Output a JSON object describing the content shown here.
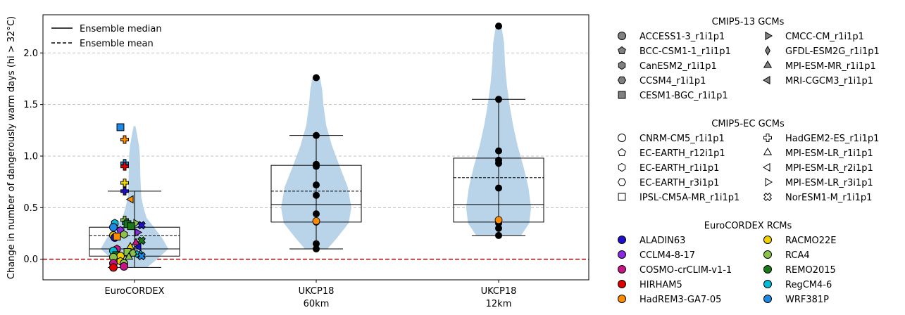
{
  "chart_data": {
    "type": "violin+box+scatter",
    "ylabel": "Change in number of dangerously warm days (hi > 32°C)",
    "ylim": [
      -0.2,
      2.37
    ],
    "yticks": [
      "0.0",
      "0.5",
      "1.0",
      "1.5",
      "2.0"
    ],
    "grid": "horizontal dashed",
    "zero_line_color": "#aa0000",
    "violin_color": "#b9d4e9",
    "categories": [
      {
        "label": "EuroCORDEX",
        "sublabel": ""
      },
      {
        "label": "UKCP18",
        "sublabel": "60km"
      },
      {
        "label": "UKCP18",
        "sublabel": "12km"
      }
    ],
    "groups": [
      {
        "name": "EuroCORDEX",
        "box": {
          "q1": 0.03,
          "median": 0.1,
          "mean": 0.23,
          "q3": 0.31
        },
        "range": [
          -0.08,
          0.66
        ],
        "violin": [
          [
            -0.08,
            0.28
          ],
          [
            0.0,
            0.5
          ],
          [
            0.1,
            0.75
          ],
          [
            0.2,
            0.62
          ],
          [
            0.3,
            0.45
          ],
          [
            0.4,
            0.27
          ],
          [
            0.5,
            0.2
          ],
          [
            0.6,
            0.15
          ],
          [
            0.8,
            0.13
          ],
          [
            1.0,
            0.12
          ],
          [
            1.1,
            0.1
          ],
          [
            1.2,
            0.06
          ],
          [
            1.29,
            0.02
          ]
        ]
      },
      {
        "name": "UKCP18 60km",
        "box": {
          "q1": 0.36,
          "median": 0.53,
          "mean": 0.66,
          "q3": 0.91
        },
        "range": [
          0.1,
          1.2
        ],
        "points": [
          1.76,
          1.2,
          0.92,
          0.9,
          0.72,
          0.62,
          0.44,
          0.36,
          0.15,
          0.1
        ],
        "highlight": 0.37,
        "violin": [
          [
            0.1,
            0.25
          ],
          [
            0.2,
            0.45
          ],
          [
            0.35,
            0.72
          ],
          [
            0.5,
            0.78
          ],
          [
            0.7,
            0.7
          ],
          [
            0.9,
            0.52
          ],
          [
            1.1,
            0.35
          ],
          [
            1.3,
            0.22
          ],
          [
            1.5,
            0.16
          ],
          [
            1.65,
            0.13
          ],
          [
            1.77,
            0.08
          ]
        ]
      },
      {
        "name": "UKCP18 12km",
        "box": {
          "q1": 0.36,
          "median": 0.53,
          "mean": 0.79,
          "q3": 0.98
        },
        "range": [
          0.23,
          1.55
        ],
        "points": [
          2.26,
          1.55,
          1.05,
          0.96,
          0.93,
          0.69,
          0.35,
          0.3,
          0.23
        ],
        "highlight": 0.38,
        "violin": [
          [
            0.23,
            0.5
          ],
          [
            0.35,
            0.68
          ],
          [
            0.5,
            0.72
          ],
          [
            0.7,
            0.66
          ],
          [
            0.9,
            0.55
          ],
          [
            1.1,
            0.42
          ],
          [
            1.3,
            0.32
          ],
          [
            1.5,
            0.24
          ],
          [
            1.7,
            0.18
          ],
          [
            1.9,
            0.14
          ],
          [
            2.1,
            0.12
          ],
          [
            2.27,
            0.06
          ]
        ]
      }
    ],
    "eurocordex_points": [
      {
        "dx": -0.2,
        "y": 1.28,
        "m": "s",
        "c": "#1e88e5"
      },
      {
        "dx": -0.14,
        "y": 1.16,
        "m": "P",
        "c": "#ff8c00"
      },
      {
        "dx": -0.14,
        "y": 0.93,
        "m": "P",
        "c": "#1e88e5"
      },
      {
        "dx": -0.14,
        "y": 0.9,
        "m": "P",
        "c": "#e00000"
      },
      {
        "dx": -0.14,
        "y": 0.74,
        "m": "P",
        "c": "#f0d000"
      },
      {
        "dx": -0.14,
        "y": 0.66,
        "m": "P",
        "c": "#1e10c8"
      },
      {
        "dx": -0.05,
        "y": 0.58,
        "m": "<",
        "c": "#ff8c00"
      },
      {
        "dx": -0.14,
        "y": 0.38,
        "m": "P",
        "c": "#8bc34a"
      },
      {
        "dx": -0.28,
        "y": 0.35,
        "m": "h",
        "c": "#00bcd4"
      },
      {
        "dx": -0.12,
        "y": 0.35,
        "m": "P",
        "c": "#20b2aa"
      },
      {
        "dx": -0.1,
        "y": 0.34,
        "m": "s",
        "c": "#1a7a1a"
      },
      {
        "dx": 0.02,
        "y": 0.35,
        "m": ">",
        "c": "#8bc34a"
      },
      {
        "dx": 0.1,
        "y": 0.33,
        "m": "X",
        "c": "#1e10c8"
      },
      {
        "dx": -0.3,
        "y": 0.31,
        "m": "o",
        "c": "#1e88e5"
      },
      {
        "dx": -0.05,
        "y": 0.32,
        "m": "s",
        "c": "#1a7a1a"
      },
      {
        "dx": -0.2,
        "y": 0.28,
        "m": "p",
        "c": "#8a2be2"
      },
      {
        "dx": 0.04,
        "y": 0.26,
        "m": ">",
        "c": "#8a2be2"
      },
      {
        "dx": -0.15,
        "y": 0.24,
        "m": "h",
        "c": "#8bc34a"
      },
      {
        "dx": -0.3,
        "y": 0.23,
        "m": "o",
        "c": "#f0d000"
      },
      {
        "dx": -0.28,
        "y": 0.21,
        "m": "o",
        "c": "#1e10c8"
      },
      {
        "dx": -0.25,
        "y": 0.22,
        "m": "s",
        "c": "#ff8c00"
      },
      {
        "dx": 0.1,
        "y": 0.18,
        "m": "X",
        "c": "#1a7a1a"
      },
      {
        "dx": 0.02,
        "y": 0.16,
        "m": "^",
        "c": "#c71585"
      },
      {
        "dx": -0.06,
        "y": 0.12,
        "m": "^",
        "c": "#f0d000"
      },
      {
        "dx": 0.06,
        "y": 0.12,
        "m": "<",
        "c": "#1e10c8"
      },
      {
        "dx": -0.25,
        "y": 0.1,
        "m": "h",
        "c": "#c71585"
      },
      {
        "dx": -0.3,
        "y": 0.08,
        "m": "o",
        "c": "#00bcd4"
      },
      {
        "dx": -0.1,
        "y": 0.07,
        "m": "s",
        "c": "#8bc34a"
      },
      {
        "dx": -0.02,
        "y": 0.06,
        "m": "p",
        "c": "#8bc34a"
      },
      {
        "dx": 0.06,
        "y": 0.05,
        "m": "X",
        "c": "#00bcd4"
      },
      {
        "dx": 0.1,
        "y": 0.03,
        "m": "X",
        "c": "#1e88e5"
      },
      {
        "dx": -0.26,
        "y": 0.04,
        "m": "s",
        "c": "#1a7a1a"
      },
      {
        "dx": -0.2,
        "y": 0.03,
        "m": "o",
        "c": "#f0d000"
      },
      {
        "dx": -0.3,
        "y": 0.02,
        "m": "o",
        "c": "#8bc34a"
      },
      {
        "dx": -0.08,
        "y": 0.02,
        "m": "^",
        "c": "#8bc34a"
      },
      {
        "dx": -0.2,
        "y": -0.02,
        "m": "h",
        "c": "#f0d000"
      },
      {
        "dx": -0.15,
        "y": -0.04,
        "m": "o",
        "c": "#8bc34a"
      },
      {
        "dx": -0.3,
        "y": -0.04,
        "m": "o",
        "c": "#c71585"
      },
      {
        "dx": -0.15,
        "y": -0.07,
        "m": "o",
        "c": "#c71585"
      },
      {
        "dx": -0.3,
        "y": -0.08,
        "m": "o",
        "c": "#e00000"
      }
    ]
  },
  "legend_plot": [
    {
      "label": "Ensemble median",
      "style": "solid"
    },
    {
      "label": "Ensemble mean",
      "style": "dashed"
    }
  ],
  "legend_sections": [
    {
      "title": "CMIP5-13 GCMs",
      "col1": [
        {
          "label": "ACCESS1-3_r1i1p1",
          "m": "o",
          "c": "#808080"
        },
        {
          "label": "BCC-CSM1-1_r1i1p1",
          "m": "p",
          "c": "#808080"
        },
        {
          "label": "CanESM2_r1i1p1",
          "m": "h",
          "c": "#808080"
        },
        {
          "label": "CCSM4_r1i1p1",
          "m": "H",
          "c": "#808080"
        },
        {
          "label": "CESM1-BGC_r1i1p1",
          "m": "s",
          "c": "#808080"
        }
      ],
      "col2": [
        {
          "label": "CMCC-CM_r1i1p1",
          "m": ">",
          "c": "#808080"
        },
        {
          "label": "GFDL-ESM2G_r1i1p1",
          "m": "d",
          "c": "#808080"
        },
        {
          "label": "MPI-ESM-MR_r1i1p1",
          "m": "^",
          "c": "#808080"
        },
        {
          "label": "MRI-CGCM3_r1i1p1",
          "m": "<",
          "c": "#808080"
        }
      ]
    },
    {
      "title": "CMIP5-EC GCMs",
      "col1": [
        {
          "label": "CNRM-CM5_r1i1p1",
          "m": "o",
          "c": "#ffffff"
        },
        {
          "label": "EC-EARTH_r12i1p1",
          "m": "p",
          "c": "#ffffff"
        },
        {
          "label": "EC-EARTH_r1i1p1",
          "m": "h",
          "c": "#ffffff"
        },
        {
          "label": "EC-EARTH_r3i1p1",
          "m": "H",
          "c": "#ffffff"
        },
        {
          "label": "IPSL-CM5A-MR_r1i1p1",
          "m": "s",
          "c": "#ffffff"
        }
      ],
      "col2": [
        {
          "label": "HadGEM2-ES_r1i1p1",
          "m": "P",
          "c": "#ffffff"
        },
        {
          "label": "MPI-ESM-LR_r1i1p1",
          "m": "^",
          "c": "#ffffff"
        },
        {
          "label": "MPI-ESM-LR_r2i1p1",
          "m": "<",
          "c": "#ffffff"
        },
        {
          "label": "MPI-ESM-LR_r3i1p1",
          "m": ">",
          "c": "#ffffff"
        },
        {
          "label": "NorESM1-M_r1i1p1",
          "m": "X",
          "c": "#ffffff"
        }
      ]
    },
    {
      "title": "EuroCORDEX RCMs",
      "col1": [
        {
          "label": "ALADIN63",
          "m": "o",
          "c": "#1e10c8"
        },
        {
          "label": "CCLM4-8-17",
          "m": "o",
          "c": "#8a2be2"
        },
        {
          "label": "COSMO-crCLIM-v1-1",
          "m": "o",
          "c": "#c71585"
        },
        {
          "label": "HIRHAM5",
          "m": "o",
          "c": "#e00000"
        },
        {
          "label": "HadREM3-GA7-05",
          "m": "o",
          "c": "#ff8c00"
        }
      ],
      "col2": [
        {
          "label": "RACMO22E",
          "m": "o",
          "c": "#f0d000"
        },
        {
          "label": "RCA4",
          "m": "o",
          "c": "#8bc34a"
        },
        {
          "label": "REMO2015",
          "m": "o",
          "c": "#1a7a1a"
        },
        {
          "label": "RegCM4-6",
          "m": "o",
          "c": "#00bcd4"
        },
        {
          "label": "WRF381P",
          "m": "o",
          "c": "#1e88e5"
        }
      ]
    }
  ]
}
